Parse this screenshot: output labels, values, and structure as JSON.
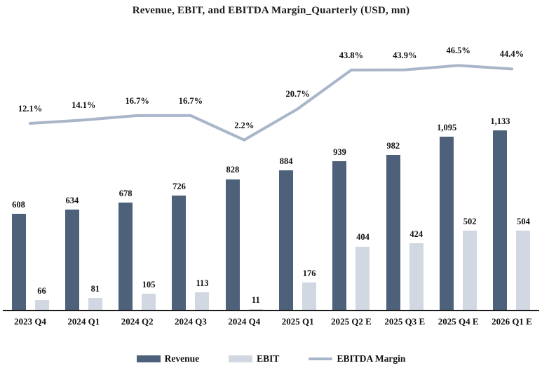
{
  "title": "Revenue, EBIT, and EBITDA Margin_Quarterly (USD, mn)",
  "colors": {
    "revenue_bar": "#4e617a",
    "ebit_bar": "#d1d8e2",
    "margin_line": "#a9b6ca",
    "axis": "#1c1c1c",
    "text": "#111111"
  },
  "legend": [
    {
      "label": "Revenue",
      "type": "bar",
      "color": "#4e617a"
    },
    {
      "label": "EBIT",
      "type": "bar",
      "color": "#d1d8e2"
    },
    {
      "label": "EBITDA Margin",
      "type": "line",
      "color": "#a9b6ca"
    }
  ],
  "chart_data": {
    "type": "bar+line combo",
    "title": "Revenue, EBIT, and EBITDA Margin_Quarterly (USD, mn)",
    "categories": [
      "2023 Q4",
      "2024 Q1",
      "2024 Q2",
      "2024 Q3",
      "2024 Q4",
      "2025 Q1",
      "2025 Q2 E",
      "2025 Q3 E",
      "2025 Q4 E",
      "2026 Q1 E"
    ],
    "series": [
      {
        "name": "Revenue",
        "type": "bar",
        "axis": "primary",
        "color": "#4e617a",
        "values": [
          608,
          634,
          678,
          726,
          828,
          884,
          939,
          982,
          1095,
          1133
        ],
        "labels": [
          "608",
          "634",
          "678",
          "726",
          "828",
          "884",
          "939",
          "982",
          "1,095",
          "1,133"
        ]
      },
      {
        "name": "EBIT",
        "type": "bar",
        "axis": "primary",
        "color": "#d1d8e2",
        "values": [
          66,
          81,
          105,
          113,
          11,
          176,
          404,
          424,
          502,
          504
        ],
        "labels": [
          "66",
          "81",
          "105",
          "113",
          "11",
          "176",
          "404",
          "424",
          "502",
          "504"
        ]
      },
      {
        "name": "EBITDA Margin",
        "type": "line",
        "axis": "secondary",
        "color": "#a9b6ca",
        "values": [
          12.1,
          14.1,
          16.7,
          16.7,
          2.2,
          20.7,
          43.8,
          43.9,
          46.5,
          44.4
        ],
        "labels": [
          "12.1%",
          "14.1%",
          "16.7%",
          "16.7%",
          "2.2%",
          "20.7%",
          "43.8%",
          "43.9%",
          "46.5%",
          "44.4%"
        ]
      }
    ],
    "layout_hints": {
      "value_axis_visible": false,
      "secondary_axis_visible": false,
      "gridlines": false,
      "data_labels": "above points and bars",
      "legend_position": "bottom center",
      "units": "USD, mn",
      "estimated_flag_suffix": "E"
    }
  }
}
